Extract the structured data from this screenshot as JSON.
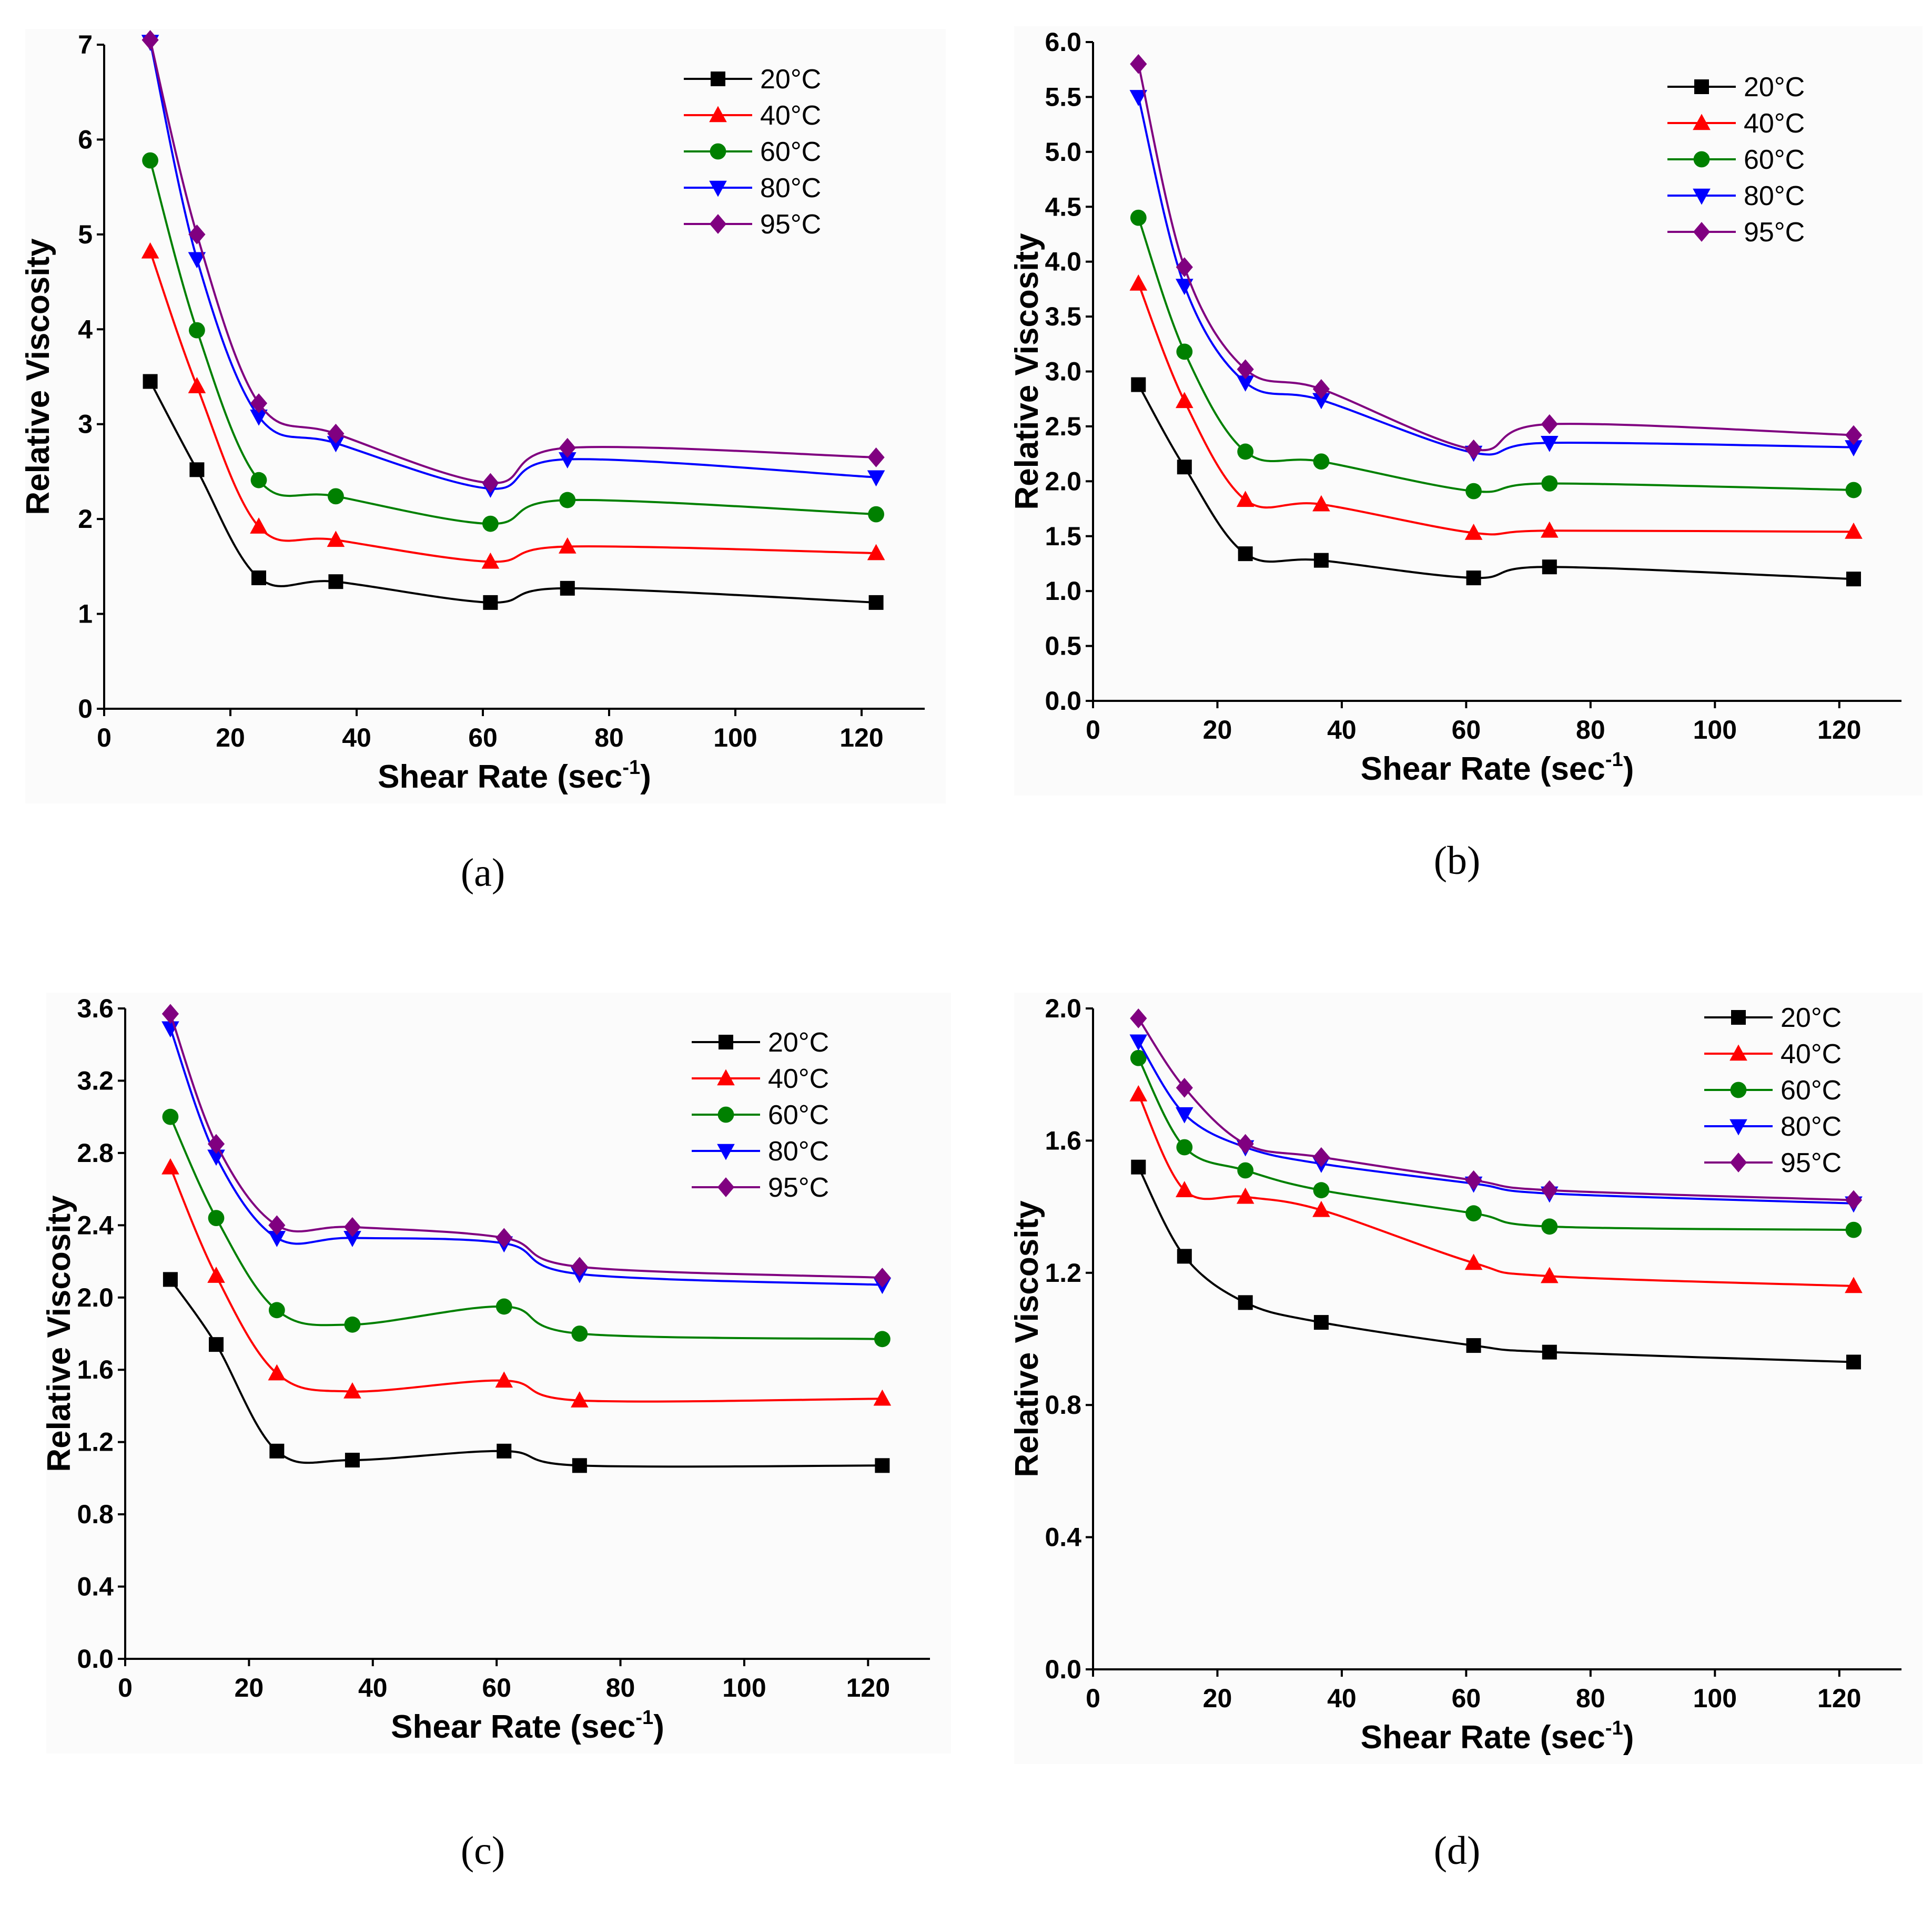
{
  "chart_data": [
    {
      "id": "a",
      "type": "line",
      "panel_label": "(a)",
      "xlabel": "Shear Rate (sec",
      "xlabel_sup": "-1",
      "xlabel_close": ")",
      "ylabel": "Relative Viscosity",
      "xlim": [
        0,
        130
      ],
      "ylim": [
        0,
        7
      ],
      "xticks": [
        0,
        20,
        40,
        60,
        80,
        100,
        120
      ],
      "xtick_labels": [
        "0",
        "20",
        "40",
        "60",
        "80",
        "100",
        "120"
      ],
      "yticks": [
        0,
        1,
        2,
        3,
        4,
        5,
        6,
        7
      ],
      "ytick_labels": [
        "0",
        "1",
        "2",
        "3",
        "4",
        "5",
        "6",
        "7"
      ],
      "x": [
        7.3,
        14.7,
        24.5,
        36.7,
        61.2,
        73.4,
        122.3
      ],
      "legend_position": "top-right",
      "series": [
        {
          "name": "20°C",
          "color": "#000000",
          "marker": "square",
          "values": [
            3.45,
            2.52,
            1.38,
            1.34,
            1.12,
            1.27,
            1.12
          ]
        },
        {
          "name": "40°C",
          "color": "#ff0000",
          "marker": "triangle-up",
          "values": [
            4.82,
            3.4,
            1.92,
            1.78,
            1.55,
            1.71,
            1.64
          ]
        },
        {
          "name": "60°C",
          "color": "#008000",
          "marker": "circle",
          "values": [
            5.78,
            3.99,
            2.41,
            2.24,
            1.95,
            2.2,
            2.05
          ]
        },
        {
          "name": "80°C",
          "color": "#0000ff",
          "marker": "triangle-down",
          "values": [
            7.03,
            4.74,
            3.08,
            2.8,
            2.32,
            2.63,
            2.44
          ]
        },
        {
          "name": "95°C",
          "color": "#800080",
          "marker": "diamond",
          "values": [
            7.05,
            5.0,
            3.22,
            2.9,
            2.38,
            2.75,
            2.65
          ]
        }
      ]
    },
    {
      "id": "b",
      "type": "line",
      "panel_label": "(b)",
      "xlabel": "Shear Rate (sec",
      "xlabel_sup": "-1",
      "xlabel_close": ")",
      "ylabel": "Relative Viscosity",
      "xlim": [
        0,
        130
      ],
      "ylim": [
        0,
        6
      ],
      "xticks": [
        0,
        20,
        40,
        60,
        80,
        100,
        120
      ],
      "xtick_labels": [
        "0",
        "20",
        "40",
        "60",
        "80",
        "100",
        "120"
      ],
      "yticks": [
        0,
        0.5,
        1.0,
        1.5,
        2.0,
        2.5,
        3.0,
        3.5,
        4.0,
        4.5,
        5.0,
        5.5,
        6.0
      ],
      "ytick_labels": [
        "0.0",
        "0.5",
        "1.0",
        "1.5",
        "2.0",
        "2.5",
        "3.0",
        "3.5",
        "4.0",
        "4.5",
        "5.0",
        "5.5",
        "6.0"
      ],
      "x": [
        7.3,
        14.7,
        24.5,
        36.7,
        61.2,
        73.4,
        122.3
      ],
      "legend_position": "top-right",
      "series": [
        {
          "name": "20°C",
          "color": "#000000",
          "marker": "square",
          "values": [
            2.88,
            2.13,
            1.34,
            1.28,
            1.12,
            1.22,
            1.11
          ]
        },
        {
          "name": "40°C",
          "color": "#ff0000",
          "marker": "triangle-up",
          "values": [
            3.8,
            2.73,
            1.83,
            1.79,
            1.53,
            1.55,
            1.54
          ]
        },
        {
          "name": "60°C",
          "color": "#008000",
          "marker": "circle",
          "values": [
            4.4,
            3.18,
            2.27,
            2.18,
            1.91,
            1.98,
            1.92
          ]
        },
        {
          "name": "80°C",
          "color": "#0000ff",
          "marker": "triangle-down",
          "values": [
            5.5,
            3.78,
            2.9,
            2.74,
            2.26,
            2.35,
            2.31
          ]
        },
        {
          "name": "95°C",
          "color": "#800080",
          "marker": "diamond",
          "values": [
            5.8,
            3.95,
            3.02,
            2.84,
            2.29,
            2.52,
            2.42
          ]
        }
      ]
    },
    {
      "id": "c",
      "type": "line",
      "panel_label": "(c)",
      "xlabel": "Shear Rate (sec",
      "xlabel_sup": "-1",
      "xlabel_close": ")",
      "ylabel": "Relative Viscosity",
      "xlim": [
        0,
        130
      ],
      "ylim": [
        0,
        3.6
      ],
      "xticks": [
        0,
        20,
        40,
        60,
        80,
        100,
        120
      ],
      "xtick_labels": [
        "0",
        "20",
        "40",
        "60",
        "80",
        "100",
        "120"
      ],
      "yticks": [
        0,
        0.4,
        0.8,
        1.2,
        1.6,
        2.0,
        2.4,
        2.8,
        3.2,
        3.6
      ],
      "ytick_labels": [
        "0.0",
        "0.4",
        "0.8",
        "1.2",
        "1.6",
        "2.0",
        "2.4",
        "2.8",
        "3.2",
        "3.6"
      ],
      "x": [
        7.3,
        14.7,
        24.5,
        36.7,
        61.2,
        73.4,
        122.3
      ],
      "legend_position": "top-right",
      "series": [
        {
          "name": "20°C",
          "color": "#000000",
          "marker": "square",
          "values": [
            2.1,
            1.74,
            1.15,
            1.1,
            1.15,
            1.07,
            1.07
          ]
        },
        {
          "name": "40°C",
          "color": "#ff0000",
          "marker": "triangle-up",
          "values": [
            2.72,
            2.12,
            1.58,
            1.48,
            1.54,
            1.43,
            1.44
          ]
        },
        {
          "name": "60°C",
          "color": "#008000",
          "marker": "circle",
          "values": [
            3.0,
            2.44,
            1.93,
            1.85,
            1.95,
            1.8,
            1.77
          ]
        },
        {
          "name": "80°C",
          "color": "#0000ff",
          "marker": "triangle-down",
          "values": [
            3.49,
            2.78,
            2.33,
            2.33,
            2.3,
            2.13,
            2.07
          ]
        },
        {
          "name": "95°C",
          "color": "#800080",
          "marker": "diamond",
          "values": [
            3.57,
            2.85,
            2.4,
            2.39,
            2.33,
            2.17,
            2.11
          ]
        }
      ]
    },
    {
      "id": "d",
      "type": "line",
      "panel_label": "(d)",
      "xlabel": "Shear Rate (sec",
      "xlabel_sup": "-1",
      "xlabel_close": ")",
      "ylabel": "Relative Viscosity",
      "xlim": [
        0,
        130
      ],
      "ylim": [
        0,
        2.0
      ],
      "xticks": [
        0,
        20,
        40,
        60,
        80,
        100,
        120
      ],
      "xtick_labels": [
        "0",
        "20",
        "40",
        "60",
        "80",
        "100",
        "120"
      ],
      "yticks": [
        0,
        0.4,
        0.8,
        1.2,
        1.6,
        2.0
      ],
      "ytick_labels": [
        "0.0",
        "0.4",
        "0.8",
        "1.2",
        "1.6",
        "2.0"
      ],
      "x": [
        7.3,
        14.7,
        24.5,
        36.7,
        61.2,
        73.4,
        122.3
      ],
      "legend_position": "top-right",
      "series": [
        {
          "name": "20°C",
          "color": "#000000",
          "marker": "square",
          "values": [
            1.52,
            1.25,
            1.11,
            1.05,
            0.98,
            0.96,
            0.93
          ]
        },
        {
          "name": "40°C",
          "color": "#ff0000",
          "marker": "triangle-up",
          "values": [
            1.74,
            1.45,
            1.43,
            1.39,
            1.23,
            1.19,
            1.16
          ]
        },
        {
          "name": "60°C",
          "color": "#008000",
          "marker": "circle",
          "values": [
            1.85,
            1.58,
            1.51,
            1.45,
            1.38,
            1.34,
            1.33
          ]
        },
        {
          "name": "80°C",
          "color": "#0000ff",
          "marker": "triangle-down",
          "values": [
            1.9,
            1.68,
            1.58,
            1.53,
            1.47,
            1.44,
            1.41
          ]
        },
        {
          "name": "95°C",
          "color": "#800080",
          "marker": "diamond",
          "values": [
            1.97,
            1.76,
            1.59,
            1.55,
            1.48,
            1.45,
            1.42
          ]
        }
      ]
    }
  ]
}
